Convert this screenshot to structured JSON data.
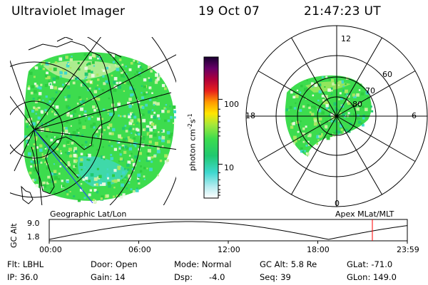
{
  "header": {
    "instrument": "Ultraviolet Imager",
    "date": "19 Oct 07",
    "time": "21:47:23 UT"
  },
  "colorbar": {
    "unit_label": "photon cm",
    "unit_sup1": "-2",
    "unit_mid": "s",
    "unit_sup2": "-1",
    "ticks": [
      "100",
      "10"
    ]
  },
  "left_map": {
    "label": "Geographic Lat/Lon"
  },
  "polar_plot": {
    "label": "Apex MLat/MLT",
    "mlt_labels": {
      "top": "12",
      "left": "18",
      "right": "6",
      "bottom": "0"
    },
    "lat_labels": [
      "60",
      "70",
      "80"
    ]
  },
  "timeline": {
    "ylabel": "GC Alt",
    "y_ticks": [
      "9.0",
      "1.8"
    ],
    "x_ticks": [
      "00:00",
      "06:00",
      "12:00",
      "18:00",
      "23:59"
    ]
  },
  "status": {
    "flt": "Flt: LBHL",
    "ip": "IP: 36.0",
    "door": "Door: Open",
    "gain": "Gain: 14",
    "mode": "Mode: Normal",
    "dsp_label": "Dsp:",
    "dsp_value": "-4.0",
    "gcalt": "GC Alt: 5.8 Re",
    "seq": "Seq: 39",
    "glat": "GLat: -71.0",
    "glon": "GLon: 149.0"
  },
  "colors": {
    "aurora_green": "#3ddc4e",
    "aurora_light": "#a8e860",
    "aurora_cyan": "#40d8c8",
    "marker_red": "#ff0000"
  }
}
